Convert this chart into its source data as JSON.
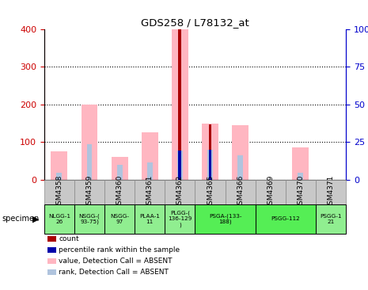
{
  "title": "GDS258 / L78132_at",
  "samples": [
    "GSM4358",
    "GSM4359",
    "GSM4360",
    "GSM4361",
    "GSM4362",
    "GSM4365",
    "GSM4366",
    "GSM4369",
    "GSM4370",
    "GSM4371"
  ],
  "pink_values": [
    75,
    200,
    60,
    125,
    400,
    150,
    145,
    0,
    85,
    0
  ],
  "blue_values": [
    18,
    95,
    40,
    47,
    78,
    80,
    65,
    0,
    18,
    0
  ],
  "red_values": [
    0,
    0,
    0,
    0,
    400,
    148,
    0,
    0,
    0,
    0
  ],
  "blue2_values": [
    0,
    0,
    0,
    0,
    78,
    80,
    0,
    0,
    0,
    0
  ],
  "ylim_left": [
    0,
    400
  ],
  "ylim_right": [
    0,
    100
  ],
  "yticks_left": [
    0,
    100,
    200,
    300,
    400
  ],
  "yticks_right": [
    0,
    25,
    50,
    75,
    100
  ],
  "yticklabels_right": [
    "0",
    "25",
    "50",
    "75",
    "100%"
  ],
  "color_pink": "#FFB6C1",
  "color_lightblue": "#B0C4DE",
  "color_red": "#AA0000",
  "color_blue": "#0000AA",
  "color_leftaxis": "#CC0000",
  "color_rightaxis": "#0000CC",
  "color_gsm_bg": "#C8C8C8",
  "color_group_light": "#90EE90",
  "color_group_bright": "#55EE55",
  "group_configs": [
    {
      "indices": [
        0
      ],
      "label": "NLGG-1\n26",
      "bright": false
    },
    {
      "indices": [
        1
      ],
      "label": "NSGG-(\n93-75)",
      "bright": false
    },
    {
      "indices": [
        2
      ],
      "label": "NSGG-\n97",
      "bright": false
    },
    {
      "indices": [
        3
      ],
      "label": "PLAA-1\n11",
      "bright": false
    },
    {
      "indices": [
        4
      ],
      "label": "PLGG-(\n136-129\n)",
      "bright": false
    },
    {
      "indices": [
        5,
        6
      ],
      "label": "PSGA-(133-\n188)",
      "bright": true
    },
    {
      "indices": [
        7,
        8
      ],
      "label": "PSGG-112",
      "bright": true
    },
    {
      "indices": [
        9
      ],
      "label": "PSGG-1\n21",
      "bright": false
    }
  ],
  "legend_items": [
    {
      "color": "#AA0000",
      "label": "count"
    },
    {
      "color": "#0000AA",
      "label": "percentile rank within the sample"
    },
    {
      "color": "#FFB6C1",
      "label": "value, Detection Call = ABSENT"
    },
    {
      "color": "#B0C4DE",
      "label": "rank, Detection Call = ABSENT"
    }
  ]
}
